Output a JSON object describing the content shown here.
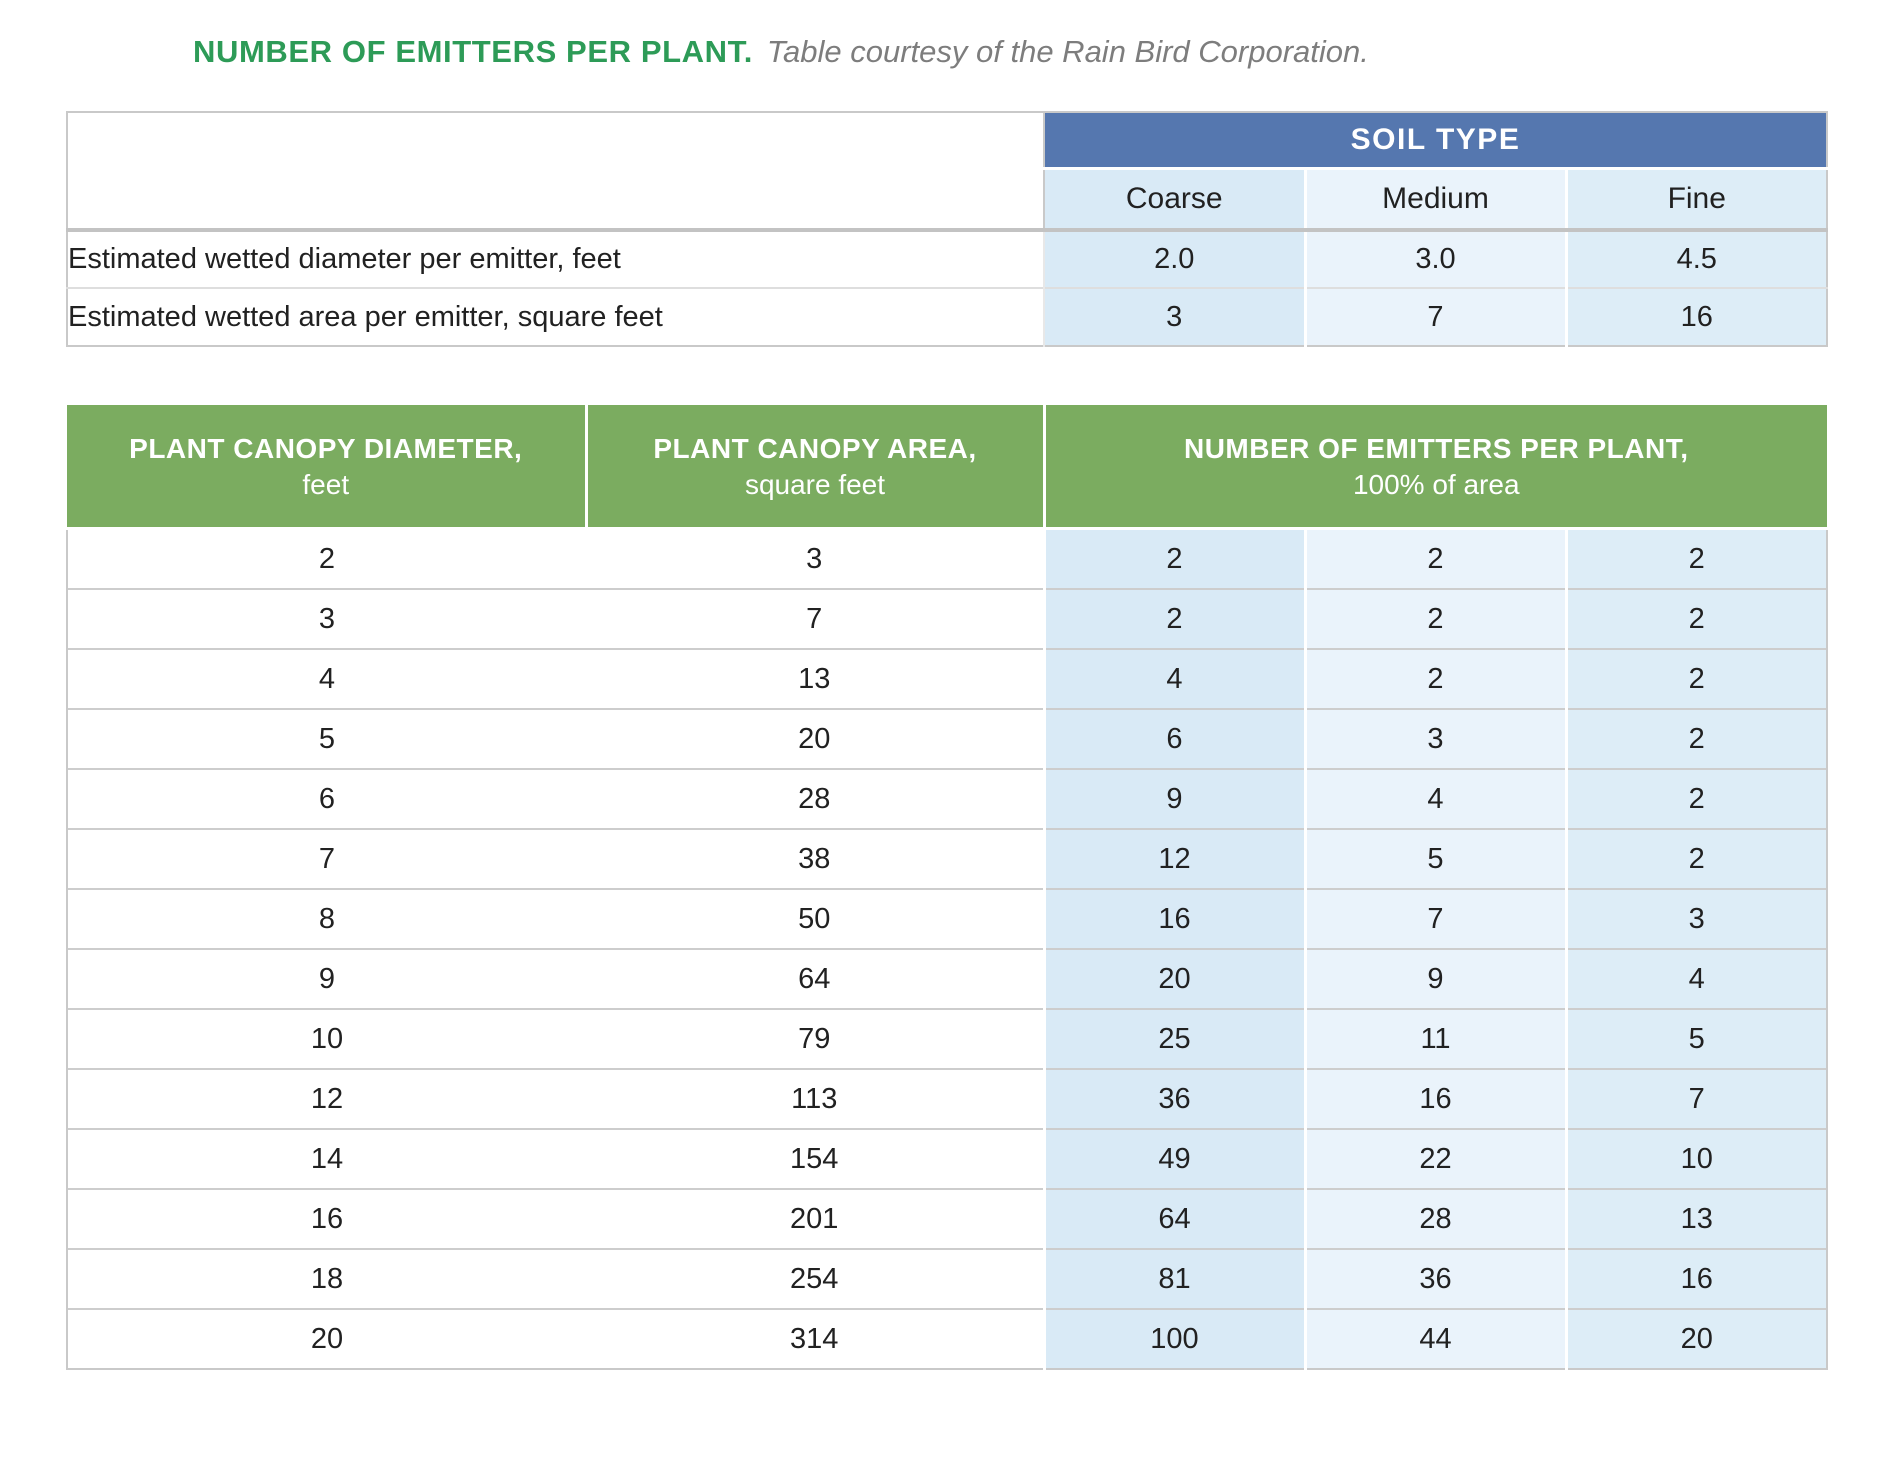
{
  "page": {
    "title": "NUMBER OF EMITTERS PER PLANT.",
    "caption": "Table courtesy of the Rain Bird Corporation."
  },
  "colors": {
    "title_green": "#2d9b57",
    "caption_gray": "#7d7d7d",
    "soil_header_blue": "#5577af",
    "canopy_header_green": "#7bac60",
    "column_blue_coarse": "#d9eaf6",
    "column_blue_medium": "#eaf3fb",
    "column_blue_fine": "#ddedf7",
    "border_gray": "#c9c9c9",
    "text_dark": "#212121"
  },
  "chart_data": [
    {
      "type": "table",
      "name": "soil-type-table",
      "group_header": "SOIL TYPE",
      "soil_columns": [
        "Coarse",
        "Medium",
        "Fine"
      ],
      "rows": [
        {
          "label": "Estimated wetted diameter per emitter, feet",
          "values": [
            "2.0",
            "3.0",
            "4.5"
          ]
        },
        {
          "label": "Estimated wetted area per emitter, square feet",
          "values": [
            "3",
            "7",
            "16"
          ]
        }
      ]
    },
    {
      "type": "table",
      "name": "emitters-per-plant-table",
      "headers": [
        {
          "line1": "PLANT CANOPY DIAMETER,",
          "line2": "feet"
        },
        {
          "line1": "PLANT CANOPY AREA,",
          "line2": "square feet"
        },
        {
          "line1": "NUMBER OF EMITTERS PER PLANT,",
          "line2": "100% of area"
        }
      ],
      "rows": [
        [
          "2",
          "3",
          "2",
          "2",
          "2"
        ],
        [
          "3",
          "7",
          "2",
          "2",
          "2"
        ],
        [
          "4",
          "13",
          "4",
          "2",
          "2"
        ],
        [
          "5",
          "20",
          "6",
          "3",
          "2"
        ],
        [
          "6",
          "28",
          "9",
          "4",
          "2"
        ],
        [
          "7",
          "38",
          "12",
          "5",
          "2"
        ],
        [
          "8",
          "50",
          "16",
          "7",
          "3"
        ],
        [
          "9",
          "64",
          "20",
          "9",
          "4"
        ],
        [
          "10",
          "79",
          "25",
          "11",
          "5"
        ],
        [
          "12",
          "113",
          "36",
          "16",
          "7"
        ],
        [
          "14",
          "154",
          "49",
          "22",
          "10"
        ],
        [
          "16",
          "201",
          "64",
          "28",
          "13"
        ],
        [
          "18",
          "254",
          "81",
          "36",
          "16"
        ],
        [
          "20",
          "314",
          "100",
          "44",
          "20"
        ]
      ]
    }
  ]
}
